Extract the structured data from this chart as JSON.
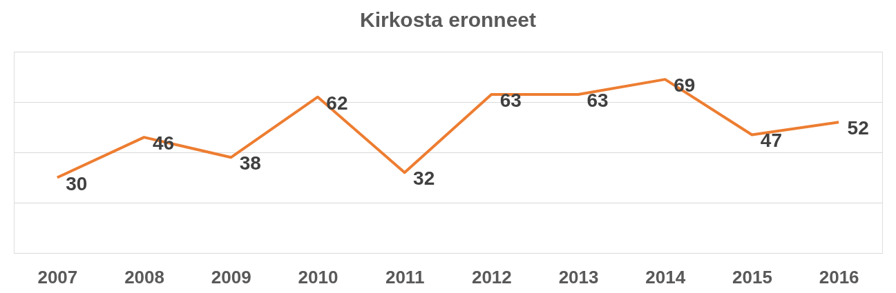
{
  "chart_data": {
    "type": "line",
    "title": "Kirkosta eronneet",
    "categories": [
      "2007",
      "2008",
      "2009",
      "2010",
      "2011",
      "2012",
      "2013",
      "2014",
      "2015",
      "2016"
    ],
    "series": [
      {
        "color": "#ed7d31",
        "values": [
          30,
          46,
          38,
          62,
          32,
          63,
          63,
          69,
          47,
          52
        ]
      }
    ],
    "ylim": [
      0,
      80
    ],
    "yticks": [
      {
        "value": 0,
        "label": null
      },
      {
        "value": 20,
        "label": null
      },
      {
        "value": 40,
        "label": null
      },
      {
        "value": 60,
        "label": null
      },
      {
        "value": 80,
        "label": null
      }
    ],
    "tick_labels": "x",
    "grid": "y",
    "data_labels": true,
    "legend": false,
    "marker": "none",
    "line_style": "solid"
  }
}
